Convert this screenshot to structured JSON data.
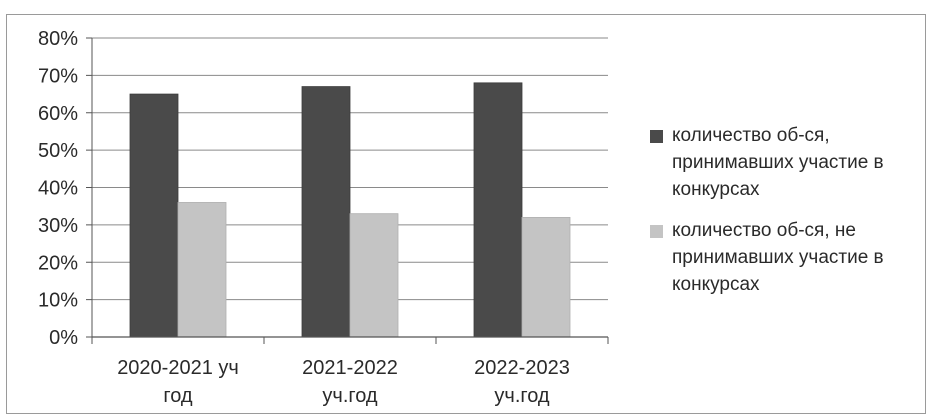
{
  "chart_data": {
    "type": "bar",
    "title": "",
    "xlabel": "",
    "ylabel": "",
    "categories": [
      [
        "2020-2021 уч",
        "год"
      ],
      [
        "2021-2022",
        "уч.год"
      ],
      [
        "2022-2023",
        "уч.год"
      ]
    ],
    "series": [
      {
        "name": "количество об-ся, принимавших участие в конкурсах",
        "name_lines": [
          "количество об-ся,",
          "принимавших участие в",
          "конкурсах"
        ],
        "values": [
          65,
          67,
          68
        ],
        "color": "#4a4a4a"
      },
      {
        "name": "количество об-ся, не принимавших участие в конкурсах",
        "name_lines": [
          "количество об-ся, не",
          "принимавших участие в",
          "конкурсах"
        ],
        "values": [
          36,
          33,
          32
        ],
        "color": "#c4c4c4"
      }
    ],
    "ylim": [
      0,
      80
    ],
    "yticks": [
      "0%",
      "10%",
      "20%",
      "30%",
      "40%",
      "50%",
      "60%",
      "70%",
      "80%"
    ],
    "ytick_values": [
      0,
      10,
      20,
      30,
      40,
      50,
      60,
      70,
      80
    ],
    "grid": true,
    "legend_position": "right"
  }
}
